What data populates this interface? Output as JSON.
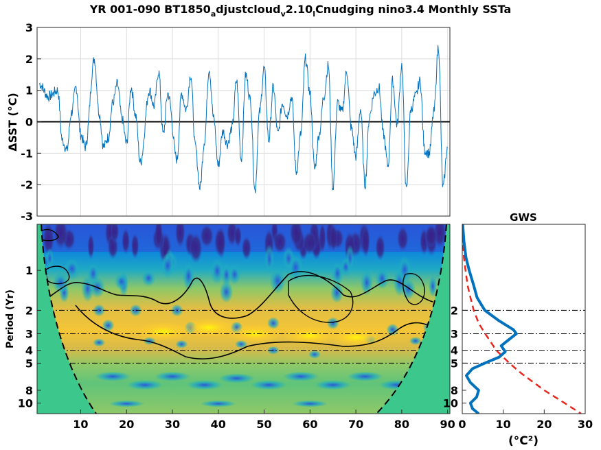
{
  "title": {
    "parts": [
      {
        "t": "YR 001-090 BT1850",
        "sub": false
      },
      {
        "t": "a",
        "sub": true
      },
      {
        "t": "djustcloud",
        "sub": false
      },
      {
        "t": "v",
        "sub": true
      },
      {
        "t": "2.10",
        "sub": false
      },
      {
        "t": "l",
        "sub": true
      },
      {
        "t": "Cnudging nino3.4 Monthly SSTa",
        "sub": false
      }
    ]
  },
  "chart_data": [
    {
      "type": "line",
      "name": "sst-anomaly-timeseries",
      "ylabel": "ΔSST (°C)",
      "xlim": [
        0.5,
        90.5
      ],
      "ylim": [
        -3,
        3
      ],
      "yticks": [
        -3,
        -2,
        -1,
        0,
        1,
        2,
        3
      ],
      "grid": true,
      "zero_line": true,
      "color": "#0072BD",
      "series": [
        {
          "x": [
            1,
            3,
            5,
            6,
            7,
            8,
            9,
            10,
            11,
            13,
            14,
            15,
            16,
            17,
            18,
            19,
            20,
            21,
            22,
            23,
            25,
            26,
            27,
            28,
            29,
            31,
            32,
            33,
            34,
            35,
            36,
            37,
            38,
            39,
            40,
            41,
            42,
            43,
            44,
            45,
            46,
            47,
            48,
            49,
            50,
            51,
            52,
            53,
            54,
            55,
            56,
            57,
            58,
            59,
            60,
            61,
            62,
            63,
            64,
            65,
            66,
            67,
            68,
            69,
            70,
            71,
            72,
            73,
            74,
            75,
            76,
            77,
            78,
            79,
            80,
            81,
            82,
            83,
            84,
            85,
            86,
            87,
            88,
            89,
            90
          ],
          "y": [
            1.2,
            0.8,
            1.0,
            -0.6,
            -0.9,
            0.3,
            1.1,
            -0.4,
            -0.8,
            2.0,
            0.3,
            -0.8,
            -0.5,
            0.6,
            1.2,
            0.1,
            -0.7,
            1.1,
            0.2,
            -1.3,
            1.0,
            0.5,
            1.6,
            -0.4,
            0.9,
            -1.2,
            0.9,
            0.4,
            1.5,
            -0.8,
            -2.1,
            -0.6,
            1.7,
            0.1,
            -1.4,
            -0.3,
            -0.7,
            -0.2,
            1.3,
            -1.2,
            1.5,
            0.7,
            -2.2,
            0.3,
            1.7,
            -0.6,
            1.1,
            -0.4,
            0.6,
            0.2,
            0.8,
            -1.6,
            -0.4,
            2.0,
            0.9,
            -1.5,
            -0.4,
            0.8,
            1.8,
            -2.1,
            0.6,
            0.3,
            1.6,
            -0.2,
            -1.1,
            0.4,
            -2.0,
            0.2,
            0.9,
            1.1,
            -0.4,
            -1.4,
            1.3,
            -0.1,
            1.8,
            -2.2,
            0.4,
            0.8,
            1.3,
            -0.9,
            -1.0,
            0.3,
            2.4,
            -2.1,
            -0.8
          ]
        }
      ]
    },
    {
      "type": "heatmap",
      "name": "wavelet-power-spectrum",
      "ylabel": "Period (Yr)",
      "xticks": [
        10,
        20,
        30,
        40,
        50,
        60,
        70,
        80,
        90
      ],
      "yticks": [
        1,
        2,
        3,
        4,
        5,
        8,
        10
      ],
      "ytick_labels": [
        "1",
        "2",
        "3",
        "4",
        "5",
        "8",
        "10"
      ],
      "yscale": "log",
      "xlim": [
        0.5,
        90.5
      ],
      "ylim": [
        0.45,
        12
      ],
      "reference_periods": [
        2,
        3,
        4,
        5
      ],
      "cone_of_influence": true,
      "significance_contours": true
    },
    {
      "type": "line",
      "name": "global-wavelet-spectrum",
      "title": "GWS",
      "xlabel": "(°C²)",
      "xlim": [
        0,
        30
      ],
      "xticks": [
        0,
        10,
        20,
        30
      ],
      "yticks": [
        2,
        3,
        4,
        5,
        8,
        10
      ],
      "yscale": "log",
      "ylim": [
        0.45,
        12
      ],
      "series": [
        {
          "style": "solid",
          "color": "#0072BD",
          "period": [
            0.45,
            0.6,
            0.8,
            1.0,
            1.3,
            1.6,
            2.0,
            2.4,
            2.8,
            3.0,
            3.3,
            3.7,
            4.1,
            4.5,
            5.0,
            5.5,
            6.2,
            7.0,
            8.0,
            9.0,
            10.0,
            11.0,
            12.0
          ],
          "power": [
            0.1,
            0.4,
            0.9,
            1.7,
            2.8,
            3.6,
            5.5,
            9.0,
            12.5,
            13.2,
            11.5,
            9.5,
            10.5,
            9.0,
            5.5,
            2.5,
            1.0,
            2.0,
            4.0,
            3.5,
            2.0,
            2.5,
            4.0
          ]
        },
        {
          "style": "dashed",
          "color": "#E8271F",
          "period": [
            0.45,
            0.6,
            0.8,
            1.0,
            1.3,
            1.6,
            2.0,
            2.5,
            3.0,
            4.0,
            5.0,
            6.0,
            8.0,
            10.0,
            12.0
          ],
          "power": [
            0.1,
            0.2,
            0.4,
            0.8,
            1.3,
            2.0,
            2.8,
            4.0,
            5.6,
            8.3,
            11.5,
            14.5,
            20.0,
            25.0,
            29.0
          ]
        }
      ]
    }
  ],
  "colors": {
    "line": "#0072BD",
    "significance_red": "#E8271F",
    "coi_fill": "#3CC88C",
    "parula": [
      "#352A87",
      "#2A56D8",
      "#0D86DC",
      "#1FAAC4",
      "#3CC88C",
      "#8FC867",
      "#D6BA4A",
      "#FCCE2E",
      "#F9FB0E"
    ]
  }
}
